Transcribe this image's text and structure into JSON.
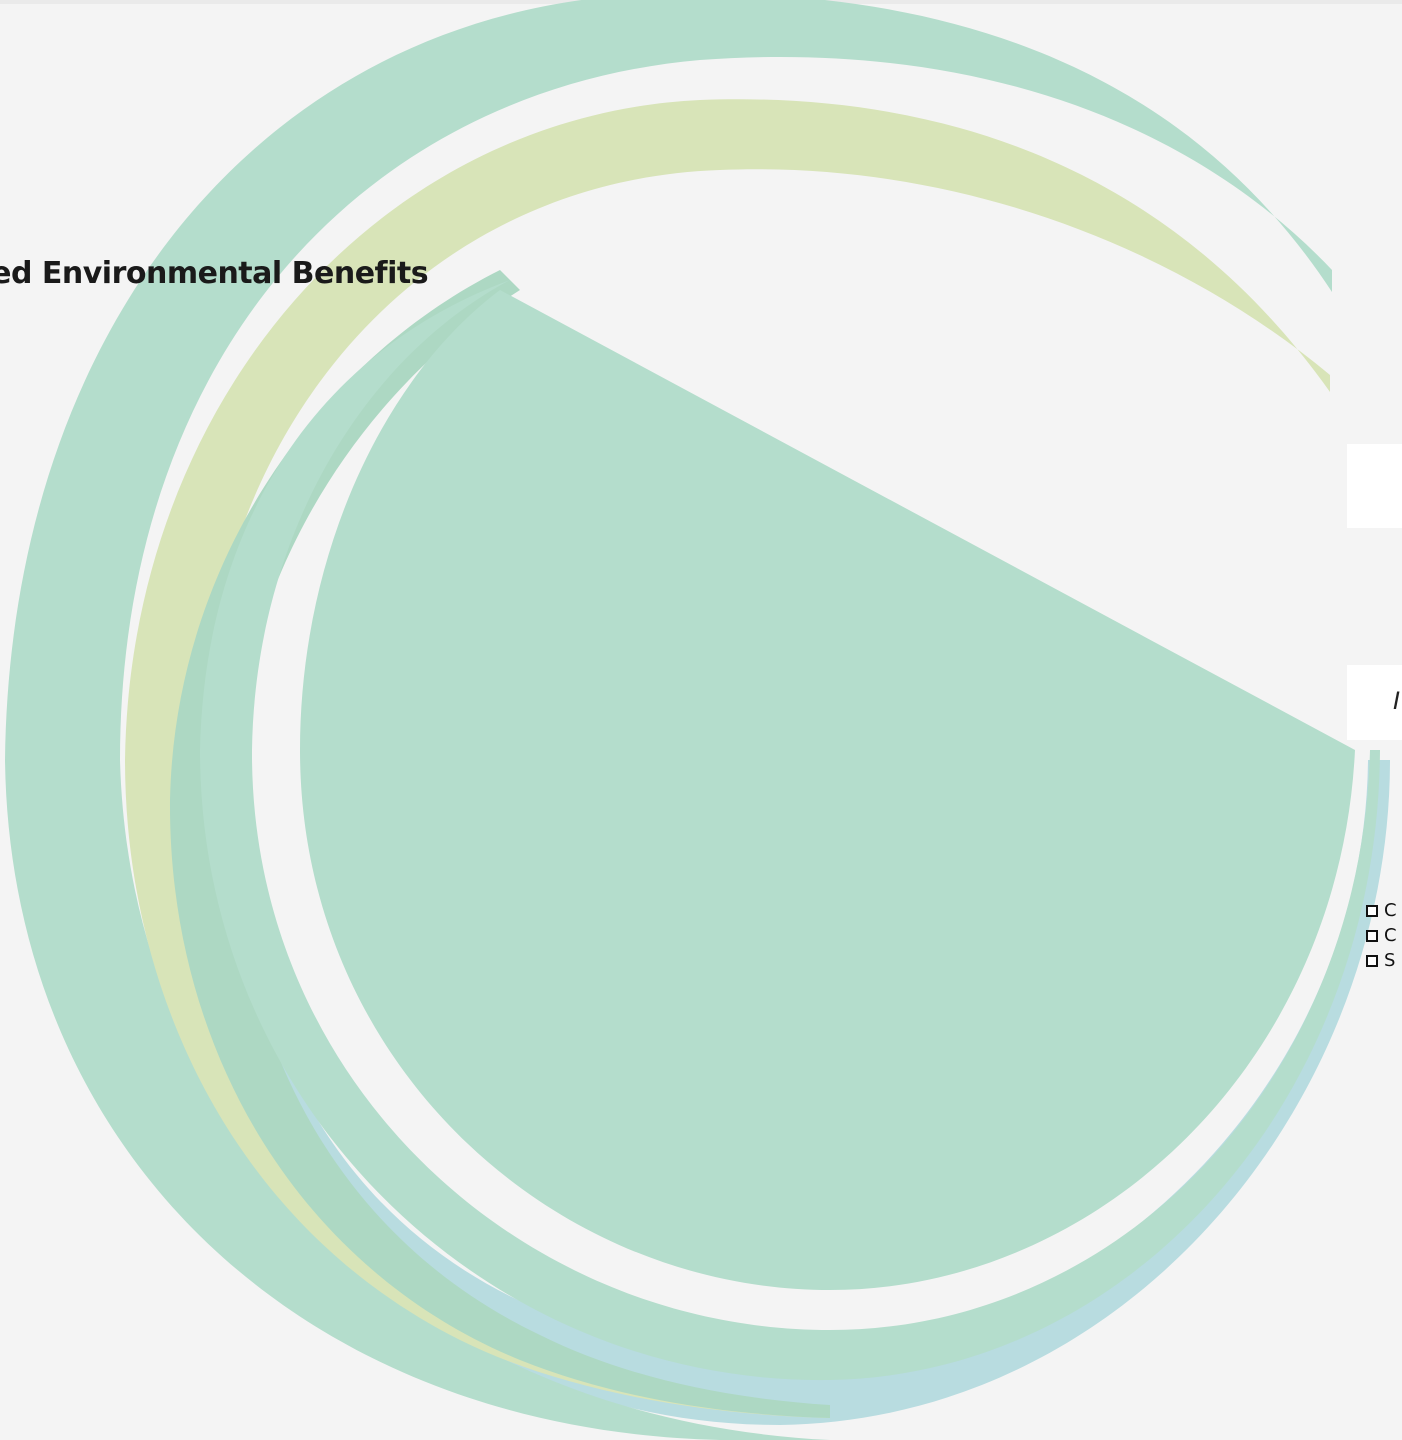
{
  "slide": {
    "title": "cted Environmental Benefits",
    "panel_text": "I",
    "checklist": [
      {
        "label": "C"
      },
      {
        "label": "C"
      },
      {
        "label": "S"
      }
    ]
  },
  "colors": {
    "background": "#f4f4f4",
    "teal_swirl": "#b4ddcc",
    "lime_swirl": "#d8e4b8",
    "blue_swirl": "#b8dce0"
  }
}
